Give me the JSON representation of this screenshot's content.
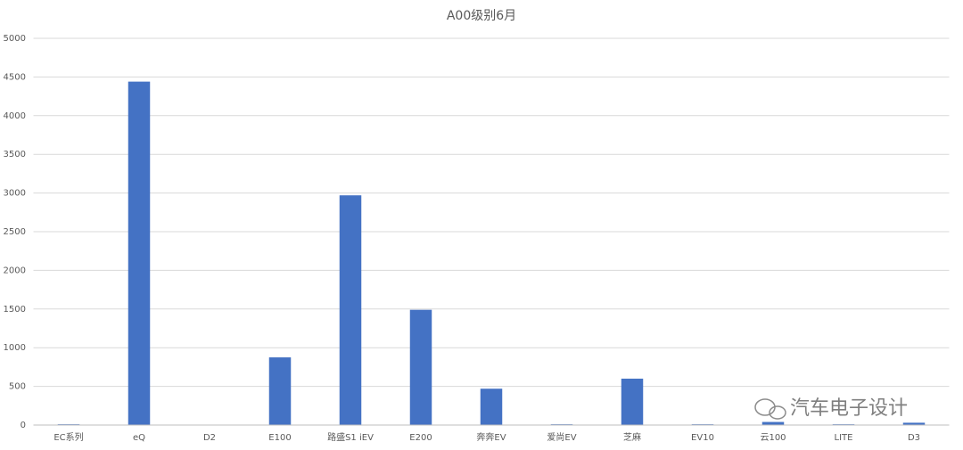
{
  "chart_data": {
    "type": "bar",
    "title": "A00级别6月",
    "categories": [
      "EC系列",
      "eQ",
      "D2",
      "E100",
      "路盛S1 iEV",
      "E200",
      "奔奔EV",
      "爱尚EV",
      "芝麻",
      "EV10",
      "云100",
      "LITE",
      "D3"
    ],
    "values": [
      10,
      4440,
      0,
      875,
      2970,
      1490,
      470,
      10,
      600,
      10,
      40,
      10,
      30
    ],
    "color": "#4472c4",
    "ylim": [
      0,
      5000
    ],
    "yticks": [
      0,
      500,
      1000,
      1500,
      2000,
      2500,
      3000,
      3500,
      4000,
      4500,
      5000
    ],
    "grid": true,
    "watermark": "汽车电子设计"
  }
}
